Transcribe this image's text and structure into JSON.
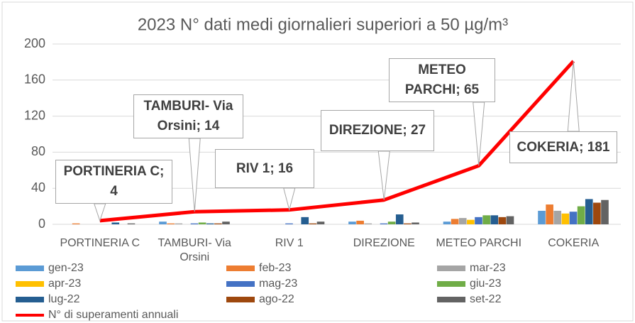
{
  "chart_data": {
    "type": "bar",
    "title": "2023 N° dati medi giornalieri superiori a 50 µg/m³",
    "categories": [
      "PORTINERIA C",
      "TAMBURI- Via Orsini",
      "RIV 1",
      "DIREZIONE",
      "METEO PARCHI",
      "COKERIA"
    ],
    "ylim": [
      0,
      200
    ],
    "yticks": [
      0,
      40,
      80,
      120,
      160,
      200
    ],
    "grid": true,
    "series": [
      {
        "name": "gen-23",
        "color": "#5b9bd5",
        "values": [
          0,
          3,
          0,
          3,
          3,
          15
        ]
      },
      {
        "name": "feb-23",
        "color": "#ed7d31",
        "values": [
          1,
          1,
          0,
          4,
          6,
          22
        ]
      },
      {
        "name": "mar-23",
        "color": "#a5a5a5",
        "values": [
          0,
          1,
          0,
          1,
          7,
          15
        ]
      },
      {
        "name": "apr-23",
        "color": "#ffc000",
        "values": [
          0,
          0,
          0,
          0,
          5,
          12
        ]
      },
      {
        "name": "mag-23",
        "color": "#4472c4",
        "values": [
          0,
          1,
          1,
          1,
          8,
          14
        ]
      },
      {
        "name": "giu-23",
        "color": "#70ad47",
        "values": [
          0,
          2,
          0,
          3,
          10,
          20
        ]
      },
      {
        "name": "lug-22",
        "color": "#255e91",
        "values": [
          2,
          1,
          8,
          11,
          10,
          28
        ]
      },
      {
        "name": "ago-22",
        "color": "#9e480e",
        "values": [
          0,
          1,
          1,
          1,
          8,
          24
        ]
      },
      {
        "name": "set-22",
        "color": "#636363",
        "values": [
          1,
          3,
          3,
          2,
          9,
          27
        ]
      },
      {
        "name": "N° di superamenti annuali",
        "type": "line",
        "color": "#ff0000",
        "values": [
          4,
          14,
          16,
          27,
          65,
          181
        ],
        "value_labels": [
          "PORTINERIA C; 4",
          "TAMBURI- Via Orsini; 14",
          "RIV 1; 16",
          "DIREZIONE; 27",
          "METEO PARCHI; 65",
          "COKERIA; 181"
        ]
      }
    ]
  }
}
